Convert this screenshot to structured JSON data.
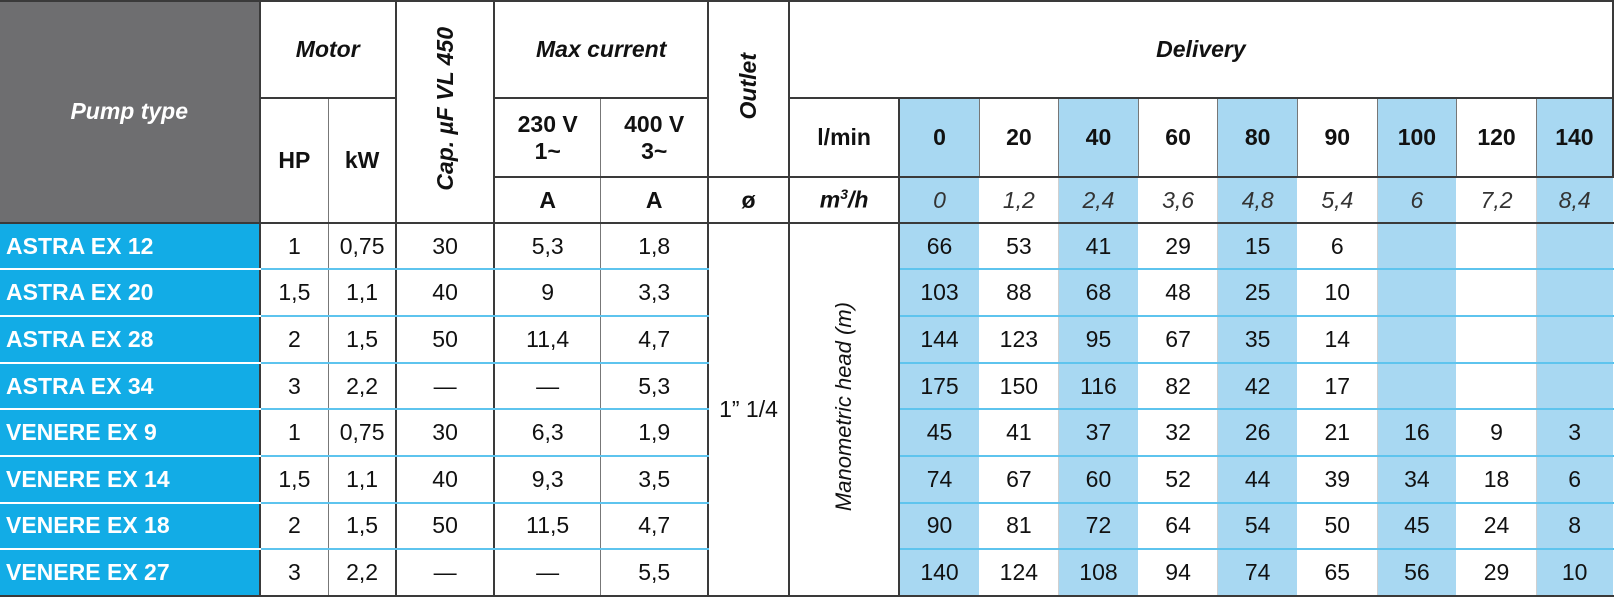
{
  "headers": {
    "pump_type": "Pump type",
    "motor": "Motor",
    "hp": "HP",
    "kw": "kW",
    "cap": "Cap. µF VL 450",
    "max_current": "Max current",
    "v230_line1": "230 V",
    "v230_line2": "1~",
    "v400_line1": "400 V",
    "v400_line2": "3~",
    "amp_unit_1": "A",
    "amp_unit_2": "A",
    "outlet": "Outlet",
    "outlet_unit": "ø",
    "delivery": "Delivery",
    "lmin": "l/min",
    "m3h_base": "m",
    "m3h_sup": "3",
    "m3h_tail": "/h",
    "manometric": "Manometric head (m)",
    "outlet_value": "1” 1/4"
  },
  "flow_lmin": [
    "0",
    "20",
    "40",
    "60",
    "80",
    "90",
    "100",
    "120",
    "140"
  ],
  "flow_m3h": [
    "0",
    "1,2",
    "2,4",
    "3,6",
    "4,8",
    "5,4",
    "6",
    "7,2",
    "8,4"
  ],
  "rows": [
    {
      "name": "ASTRA EX 12",
      "hp": "1",
      "kw": "0,75",
      "cap": "30",
      "a230": "5,3",
      "a400": "1,8",
      "head": [
        "66",
        "53",
        "41",
        "29",
        "15",
        "6",
        "",
        "",
        ""
      ]
    },
    {
      "name": "ASTRA EX 20",
      "hp": "1,5",
      "kw": "1,1",
      "cap": "40",
      "a230": "9",
      "a400": "3,3",
      "head": [
        "103",
        "88",
        "68",
        "48",
        "25",
        "10",
        "",
        "",
        ""
      ]
    },
    {
      "name": "ASTRA EX 28",
      "hp": "2",
      "kw": "1,5",
      "cap": "50",
      "a230": "11,4",
      "a400": "4,7",
      "head": [
        "144",
        "123",
        "95",
        "67",
        "35",
        "14",
        "",
        "",
        ""
      ]
    },
    {
      "name": "ASTRA EX 34",
      "hp": "3",
      "kw": "2,2",
      "cap": "—",
      "a230": "—",
      "a400": "5,3",
      "head": [
        "175",
        "150",
        "116",
        "82",
        "42",
        "17",
        "",
        "",
        ""
      ]
    },
    {
      "name": "VENERE EX 9",
      "hp": "1",
      "kw": "0,75",
      "cap": "30",
      "a230": "6,3",
      "a400": "1,9",
      "head": [
        "45",
        "41",
        "37",
        "32",
        "26",
        "21",
        "16",
        "9",
        "3"
      ]
    },
    {
      "name": "VENERE EX 14",
      "hp": "1,5",
      "kw": "1,1",
      "cap": "40",
      "a230": "9,3",
      "a400": "3,5",
      "head": [
        "74",
        "67",
        "60",
        "52",
        "44",
        "39",
        "34",
        "18",
        "6"
      ]
    },
    {
      "name": "VENERE EX 18",
      "hp": "2",
      "kw": "1,5",
      "cap": "50",
      "a230": "11,5",
      "a400": "4,7",
      "head": [
        "90",
        "81",
        "72",
        "64",
        "54",
        "50",
        "45",
        "24",
        "8"
      ]
    },
    {
      "name": "VENERE EX 27",
      "hp": "3",
      "kw": "2,2",
      "cap": "—",
      "a230": "—",
      "a400": "5,5",
      "head": [
        "140",
        "124",
        "108",
        "94",
        "74",
        "65",
        "56",
        "29",
        "10"
      ]
    }
  ]
}
